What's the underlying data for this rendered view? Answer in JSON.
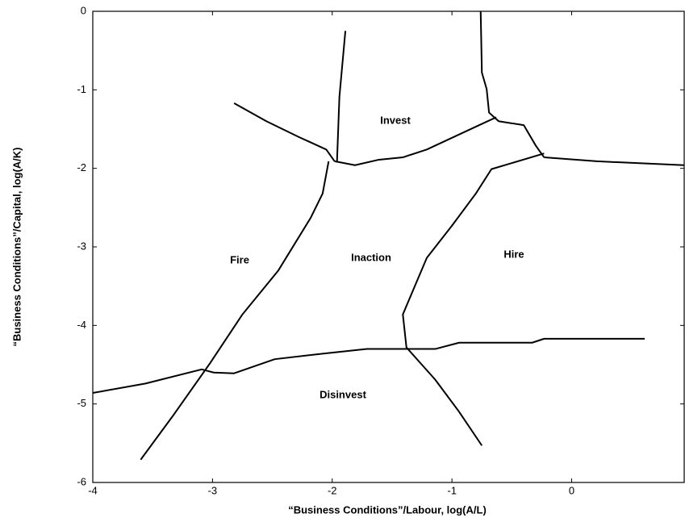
{
  "chart_data": {
    "type": "line",
    "xlabel": "“Business Conditions”/Labour, log(A/L)",
    "ylabel": "“Business Conditions”/Capital, log(A/K)",
    "xlim": [
      -4,
      0.94
    ],
    "ylim": [
      -6,
      0
    ],
    "xticks": [
      -4,
      -3,
      -2,
      -1,
      0
    ],
    "yticks": [
      0,
      -1,
      -2,
      -3,
      -4,
      -5,
      -6
    ],
    "annotations": [
      "Invest",
      "Fire",
      "Inaction",
      "Hire",
      "Disinvest"
    ],
    "series": [
      {
        "color": "#000000",
        "x": [
          -2.82,
          -2.55,
          -2.28,
          -2.05,
          -1.98
        ],
        "values": [
          -1.17,
          -1.4,
          -1.6,
          -1.76,
          -1.91
        ]
      },
      {
        "color": "#000000",
        "x": [
          -1.89,
          -1.94,
          -1.96
        ],
        "values": [
          -0.25,
          -1.09,
          -1.91
        ]
      },
      {
        "color": "#000000",
        "x": [
          -3.6,
          -3.33,
          -3.02,
          -2.75,
          -2.45,
          -2.18,
          -2.08,
          -2.03
        ],
        "values": [
          -5.71,
          -5.15,
          -4.48,
          -3.86,
          -3.3,
          -2.63,
          -2.32,
          -1.91
        ]
      },
      {
        "color": "#000000",
        "x": [
          -1.98,
          -1.81,
          -1.61,
          -1.41,
          -1.21,
          -0.73,
          -0.63
        ],
        "values": [
          -1.91,
          -1.96,
          -1.89,
          -1.86,
          -1.76,
          -1.42,
          -1.35
        ]
      },
      {
        "color": "#000000",
        "x": [
          -0.76,
          -0.75,
          -0.71,
          -0.69,
          -0.61,
          -0.4,
          -0.3,
          -0.23
        ],
        "values": [
          0,
          -0.78,
          -0.99,
          -1.29,
          -1.4,
          -1.45,
          -1.71,
          -1.86
        ]
      },
      {
        "color": "#000000",
        "x": [
          -0.23,
          0.21,
          0.94
        ],
        "values": [
          -1.86,
          -1.91,
          -1.96
        ]
      },
      {
        "color": "#000000",
        "x": [
          -0.23,
          -0.67,
          -0.8,
          -1.0,
          -1.21,
          -1.31,
          -1.41,
          -1.38,
          -1.14,
          -0.94,
          -0.75
        ],
        "values": [
          -1.81,
          -2.01,
          -2.32,
          -2.73,
          -3.14,
          -3.5,
          -3.86,
          -4.28,
          -4.69,
          -5.1,
          -5.53
        ]
      },
      {
        "color": "#000000",
        "x": [
          -4,
          -3.56,
          -3.09,
          -2.99,
          -2.82,
          -2.48,
          -2.08,
          -1.71,
          -1.14,
          -0.94,
          -0.33,
          -0.23,
          0.61
        ],
        "values": [
          -4.86,
          -4.74,
          -4.56,
          -4.6,
          -4.61,
          -4.43,
          -4.36,
          -4.3,
          -4.3,
          -4.22,
          -4.22,
          -4.17,
          -4.17
        ]
      }
    ]
  }
}
